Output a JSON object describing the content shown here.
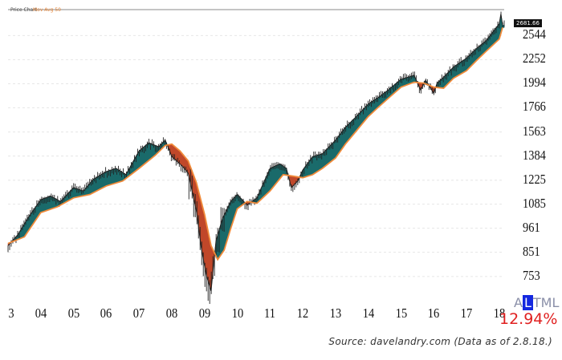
{
  "header": {
    "title": "Price Chart",
    "legend": "Mov Avg 50"
  },
  "price_label": "2681.66",
  "logo": {
    "prefix": "A",
    "highlight": "L",
    "suffix": "TML"
  },
  "percent": "12.94%",
  "source": "Source: davelandry.com (Data as of 2.8.18.)",
  "colors": {
    "above_fill": "#1a6b6b",
    "below_fill": "#c0482a",
    "moving_average": "#f08a3a",
    "price_bar": "#222222",
    "grid": "#e6e6e6"
  },
  "chart_data": {
    "type": "area",
    "y_scale": "log",
    "ylim": [
      680,
      2900
    ],
    "x_range": [
      2003.0,
      2018.15
    ],
    "yticks": [
      2544,
      2252,
      1994,
      1766,
      1563,
      1384,
      1225,
      1085,
      961,
      851,
      753
    ],
    "xtick_labels": [
      "3",
      "04",
      "05",
      "06",
      "07",
      "08",
      "09",
      "10",
      "11",
      "12",
      "13",
      "14",
      "15",
      "16",
      "17",
      "18"
    ],
    "grid": "horizontal dashed",
    "series": [
      {
        "name": "Price",
        "x": [
          2003.0,
          2003.3,
          2003.6,
          2004.0,
          2004.3,
          2004.6,
          2005.0,
          2005.3,
          2005.6,
          2006.0,
          2006.3,
          2006.6,
          2007.0,
          2007.3,
          2007.6,
          2007.8,
          2008.0,
          2008.3,
          2008.5,
          2008.75,
          2008.9,
          2009.05,
          2009.2,
          2009.35,
          2009.55,
          2009.8,
          2010.0,
          2010.3,
          2010.6,
          2011.0,
          2011.3,
          2011.5,
          2011.65,
          2011.85,
          2012.0,
          2012.3,
          2012.6,
          2013.0,
          2013.3,
          2013.6,
          2014.0,
          2014.3,
          2014.6,
          2015.0,
          2015.4,
          2015.6,
          2015.75,
          2016.0,
          2016.1,
          2016.3,
          2016.6,
          2017.0,
          2017.3,
          2017.6,
          2018.0,
          2018.05,
          2018.1
        ],
        "values": [
          880,
          930,
          1010,
          1110,
          1130,
          1100,
          1180,
          1160,
          1230,
          1280,
          1300,
          1260,
          1420,
          1480,
          1450,
          1500,
          1380,
          1320,
          1270,
          1050,
          870,
          760,
          700,
          900,
          1010,
          1100,
          1140,
          1080,
          1120,
          1300,
          1330,
          1300,
          1180,
          1220,
          1290,
          1380,
          1400,
          1500,
          1600,
          1680,
          1800,
          1860,
          1930,
          2040,
          2080,
          1930,
          2030,
          1900,
          2000,
          2060,
          2170,
          2270,
          2380,
          2480,
          2700,
          2840,
          2681
        ]
      },
      {
        "name": "Mov Avg 50",
        "x": [
          2003.0,
          2003.5,
          2004.0,
          2004.5,
          2005.0,
          2005.5,
          2006.0,
          2006.5,
          2007.0,
          2007.5,
          2007.8,
          2008.0,
          2008.25,
          2008.5,
          2008.75,
          2009.0,
          2009.2,
          2009.4,
          2009.6,
          2009.8,
          2010.0,
          2010.3,
          2010.6,
          2011.0,
          2011.4,
          2011.7,
          2012.0,
          2012.3,
          2012.6,
          2013.0,
          2013.3,
          2013.6,
          2014.0,
          2014.3,
          2014.6,
          2015.0,
          2015.4,
          2015.7,
          2016.0,
          2016.3,
          2016.6,
          2017.0,
          2017.3,
          2017.6,
          2018.0,
          2018.1
        ],
        "values": [
          890,
          920,
          1040,
          1070,
          1120,
          1140,
          1190,
          1220,
          1300,
          1390,
          1460,
          1470,
          1420,
          1350,
          1210,
          1030,
          880,
          820,
          860,
          960,
          1060,
          1100,
          1090,
          1160,
          1260,
          1250,
          1240,
          1260,
          1300,
          1370,
          1470,
          1560,
          1690,
          1770,
          1850,
          1960,
          2010,
          2000,
          1960,
          1950,
          2050,
          2130,
          2240,
          2350,
          2500,
          2650
        ]
      }
    ]
  }
}
